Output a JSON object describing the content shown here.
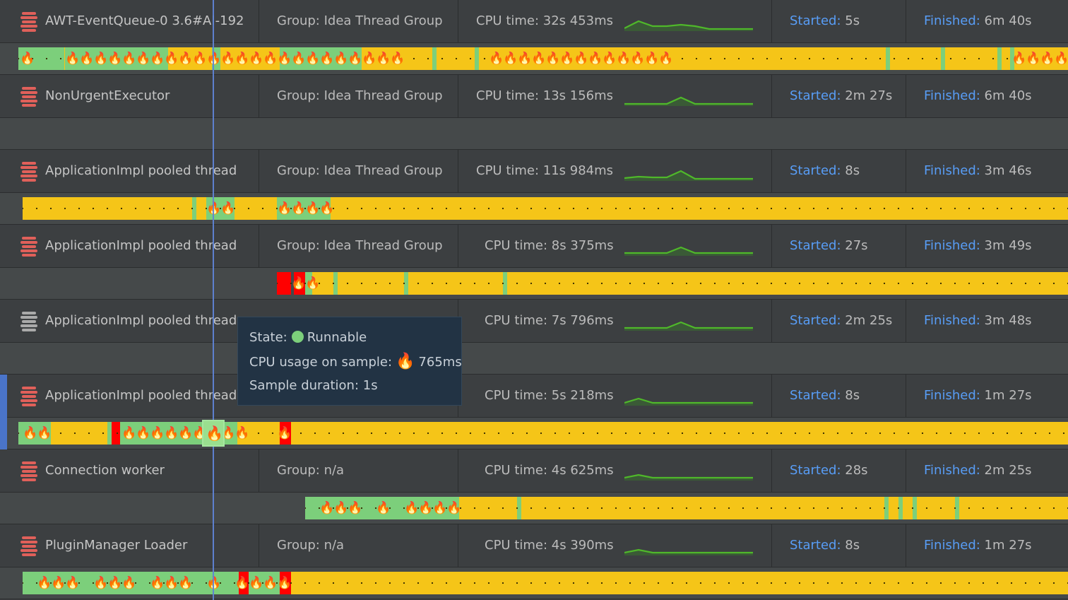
{
  "colors": {
    "accent_link": "#589df6",
    "timeline_running": "#f5c518",
    "timeline_green": "#7ccf7b",
    "timeline_red": "#ff0000",
    "icon_active": "#e0605a",
    "icon_inactive": "#aaaaaa",
    "sparkline": "#4fb82a",
    "tooltip_bg": "#223344"
  },
  "labels": {
    "started": "Started:",
    "finished": "Finished:"
  },
  "threads": [
    {
      "name": "AWT-EventQueue-0 3.6#AI-192",
      "group": "Group: Idea Thread Group",
      "cpu": "CPU time: 32s 453ms",
      "started": "5s",
      "finished": "6m 40s",
      "icon": "thread-icon-active"
    },
    {
      "name": "NonUrgentExecutor",
      "group": "Group: Idea Thread Group",
      "cpu": "CPU time: 13s 156ms",
      "started": "2m 27s",
      "finished": "6m 40s",
      "icon": "thread-icon-active"
    },
    {
      "name": "ApplicationImpl pooled thread",
      "group": "Group: Idea Thread Group",
      "cpu": "CPU time: 11s 984ms",
      "started": "8s",
      "finished": "3m 46s",
      "icon": "thread-icon-active"
    },
    {
      "name": "ApplicationImpl pooled thread",
      "group": "Group: Idea Thread Group",
      "cpu": "CPU time: 8s 375ms",
      "started": "27s",
      "finished": "3m 49s",
      "icon": "thread-icon-active"
    },
    {
      "name": "ApplicationImpl pooled thread",
      "group": "",
      "cpu": "CPU time: 7s 796ms",
      "started": "2m 25s",
      "finished": "3m 48s",
      "icon": "thread-icon-inactive"
    },
    {
      "name": "ApplicationImpl pooled thread",
      "group": "",
      "cpu": "CPU time: 5s 218ms",
      "started": "8s",
      "finished": "1m 27s",
      "icon": "thread-icon-active"
    },
    {
      "name": "Connection worker",
      "group": "Group: n/a",
      "cpu": "CPU time: 4s 625ms",
      "started": "28s",
      "finished": "2m 25s",
      "icon": "thread-icon-active"
    },
    {
      "name": "PluginManager Loader",
      "group": "Group: n/a",
      "cpu": "CPU time: 4s 390ms",
      "started": "8s",
      "finished": "1m 27s",
      "icon": "thread-icon-active"
    }
  ],
  "tooltip": {
    "state_label": "State:",
    "state_value": "Runnable",
    "cpu_label": "CPU usage on sample:",
    "cpu_value": "765ms",
    "duration": "Sample duration: 1s"
  }
}
